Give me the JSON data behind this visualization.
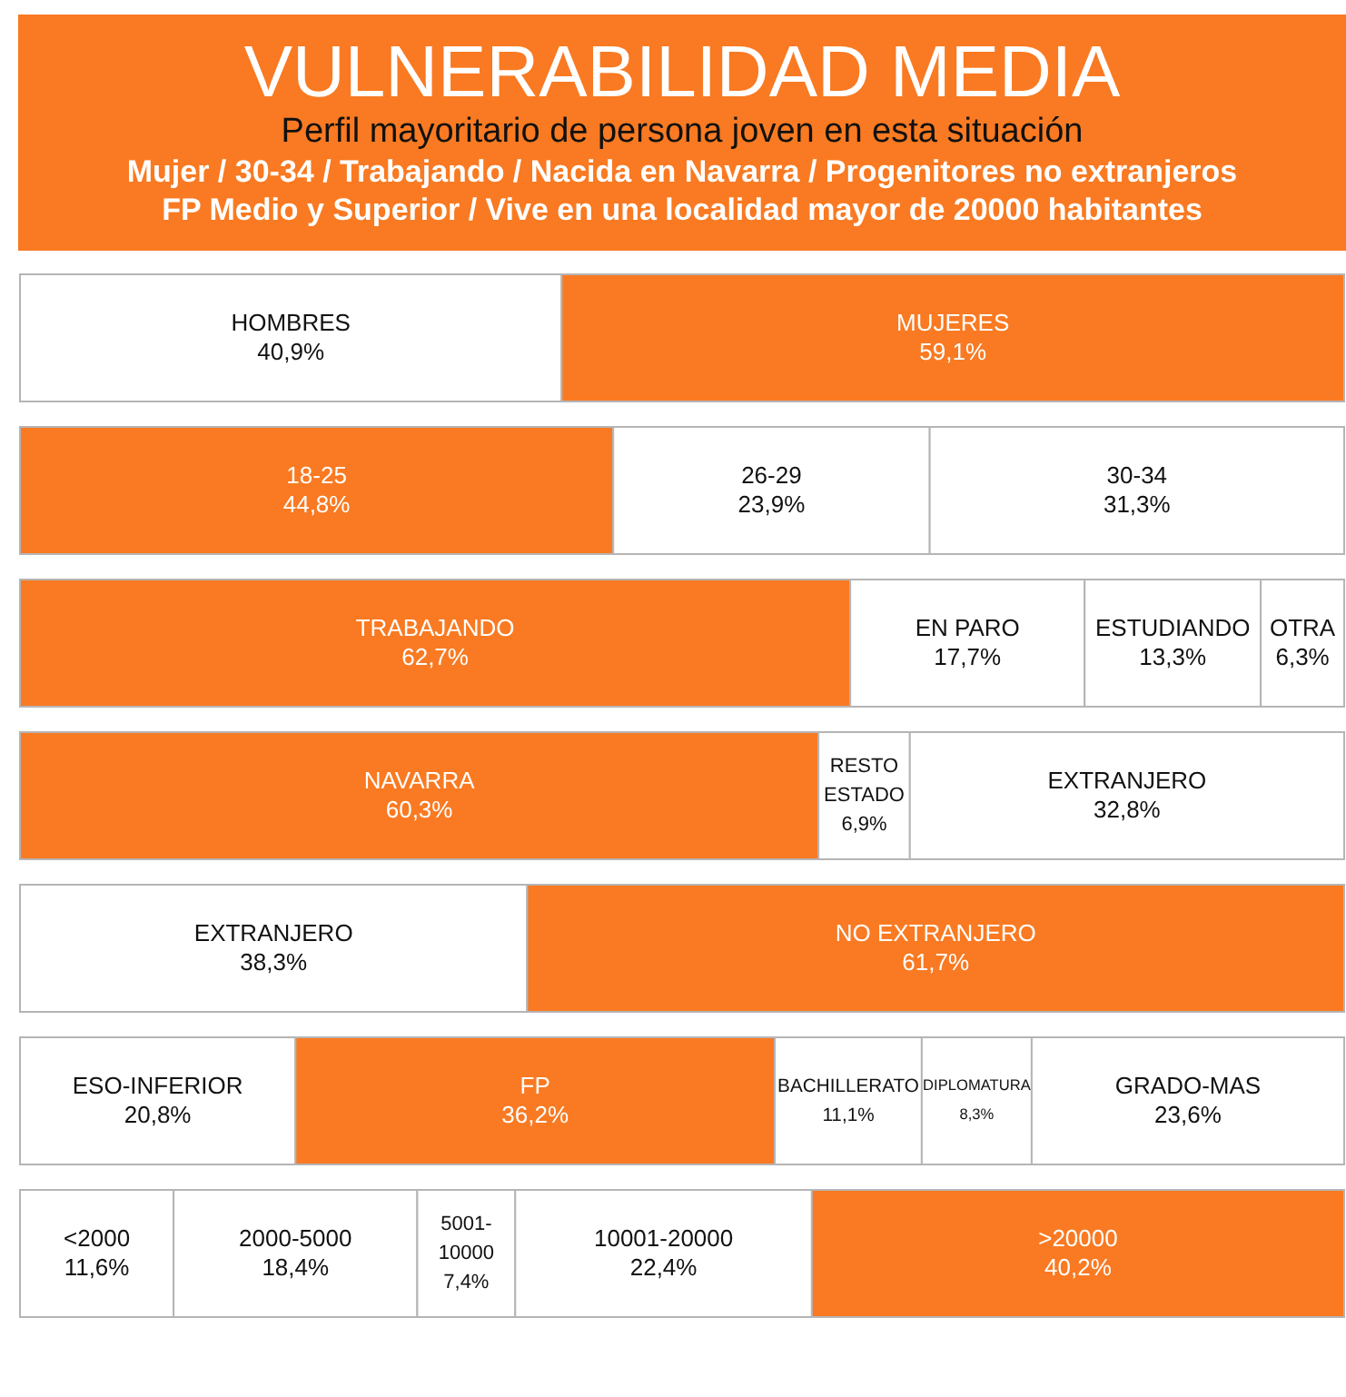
{
  "chart_data": [
    {
      "type": "other",
      "title": "VULNERABILIDAD MEDIA",
      "subtitle": "Perfil mayoritario de persona joven en esta situación",
      "annotations": [
        "Mujer / 30-34 / Trabajando / Nacida en Navarra / Progenitores no extranjeros",
        "FP Medio y Superior / Vive en una localidad mayor de 20000 habitantes"
      ]
    },
    {
      "type": "bar",
      "orientation": "horizontal",
      "stacked": true,
      "categories": [
        null
      ],
      "series": [
        {
          "name": "HOMBRES",
          "color": "#ffffff",
          "values": [
            40.9
          ],
          "value_labels": [
            "40,9%"
          ]
        },
        {
          "name": "MUJERES",
          "color": "#f97a22",
          "values": [
            59.1
          ],
          "value_labels": [
            "59,1%"
          ]
        }
      ]
    },
    {
      "type": "bar",
      "orientation": "horizontal",
      "stacked": true,
      "categories": [
        null
      ],
      "series": [
        {
          "name": "18-25",
          "color": "#f97a22",
          "values": [
            44.8
          ],
          "value_labels": [
            "44,8%"
          ]
        },
        {
          "name": "26-29",
          "color": "#ffffff",
          "values": [
            23.9
          ],
          "value_labels": [
            "23,9%"
          ]
        },
        {
          "name": "30-34",
          "color": "#ffffff",
          "values": [
            31.3
          ],
          "value_labels": [
            "31,3%"
          ]
        }
      ]
    },
    {
      "type": "bar",
      "orientation": "horizontal",
      "stacked": true,
      "categories": [
        null
      ],
      "series": [
        {
          "name": "TRABAJANDO",
          "color": "#f97a22",
          "values": [
            62.7
          ],
          "value_labels": [
            "62,7%"
          ]
        },
        {
          "name": "EN PARO",
          "color": "#ffffff",
          "values": [
            17.7
          ],
          "value_labels": [
            "17,7%"
          ]
        },
        {
          "name": "ESTUDIANDO",
          "color": "#ffffff",
          "values": [
            13.3
          ],
          "value_labels": [
            "13,3%"
          ]
        },
        {
          "name": "OTRA",
          "color": "#ffffff",
          "values": [
            6.3
          ],
          "value_labels": [
            "6,3%"
          ]
        }
      ]
    },
    {
      "type": "bar",
      "orientation": "horizontal",
      "stacked": true,
      "categories": [
        null
      ],
      "series": [
        {
          "name": "NAVARRA",
          "color": "#f97a22",
          "values": [
            60.3
          ],
          "value_labels": [
            "60,3%"
          ]
        },
        {
          "name": "RESTO ESTADO",
          "color": "#ffffff",
          "values": [
            6.9
          ],
          "value_labels": [
            "6,9%"
          ]
        },
        {
          "name": "EXTRANJERO",
          "color": "#ffffff",
          "values": [
            32.8
          ],
          "value_labels": [
            "32,8%"
          ]
        }
      ]
    },
    {
      "type": "bar",
      "orientation": "horizontal",
      "stacked": true,
      "categories": [
        null
      ],
      "series": [
        {
          "name": "EXTRANJERO",
          "color": "#ffffff",
          "values": [
            38.3
          ],
          "value_labels": [
            "38,3%"
          ]
        },
        {
          "name": "NO EXTRANJERO",
          "color": "#f97a22",
          "values": [
            61.7
          ],
          "value_labels": [
            "61,7%"
          ]
        }
      ]
    },
    {
      "type": "bar",
      "orientation": "horizontal",
      "stacked": true,
      "categories": [
        null
      ],
      "series": [
        {
          "name": "ESO-INFERIOR",
          "color": "#ffffff",
          "values": [
            20.8
          ],
          "value_labels": [
            "20,8%"
          ]
        },
        {
          "name": "FP",
          "color": "#f97a22",
          "values": [
            36.2
          ],
          "value_labels": [
            "36,2%"
          ]
        },
        {
          "name": "BACHILLERATO",
          "color": "#ffffff",
          "values": [
            11.1
          ],
          "value_labels": [
            "11,1%"
          ]
        },
        {
          "name": "DIPLOMATURA",
          "color": "#ffffff",
          "values": [
            8.3
          ],
          "value_labels": [
            "8,3%"
          ]
        },
        {
          "name": "GRADO-MAS",
          "color": "#ffffff",
          "values": [
            23.6
          ],
          "value_labels": [
            "23,6%"
          ]
        }
      ]
    },
    {
      "type": "bar",
      "orientation": "horizontal",
      "stacked": true,
      "categories": [
        null
      ],
      "series": [
        {
          "name": "<2000",
          "color": "#ffffff",
          "values": [
            11.6
          ],
          "value_labels": [
            "11,6%"
          ]
        },
        {
          "name": "2000-5000",
          "color": "#ffffff",
          "values": [
            18.4
          ],
          "value_labels": [
            "18,4%"
          ]
        },
        {
          "name": "5001-10000",
          "color": "#ffffff",
          "values": [
            7.4
          ],
          "value_labels": [
            "7,4%"
          ]
        },
        {
          "name": "10001-20000",
          "color": "#ffffff",
          "values": [
            22.4
          ],
          "value_labels": [
            "22,4%"
          ]
        },
        {
          "name": ">20000",
          "color": "#f97a22",
          "values": [
            40.2
          ],
          "value_labels": [
            "40,2%"
          ]
        }
      ]
    }
  ]
}
